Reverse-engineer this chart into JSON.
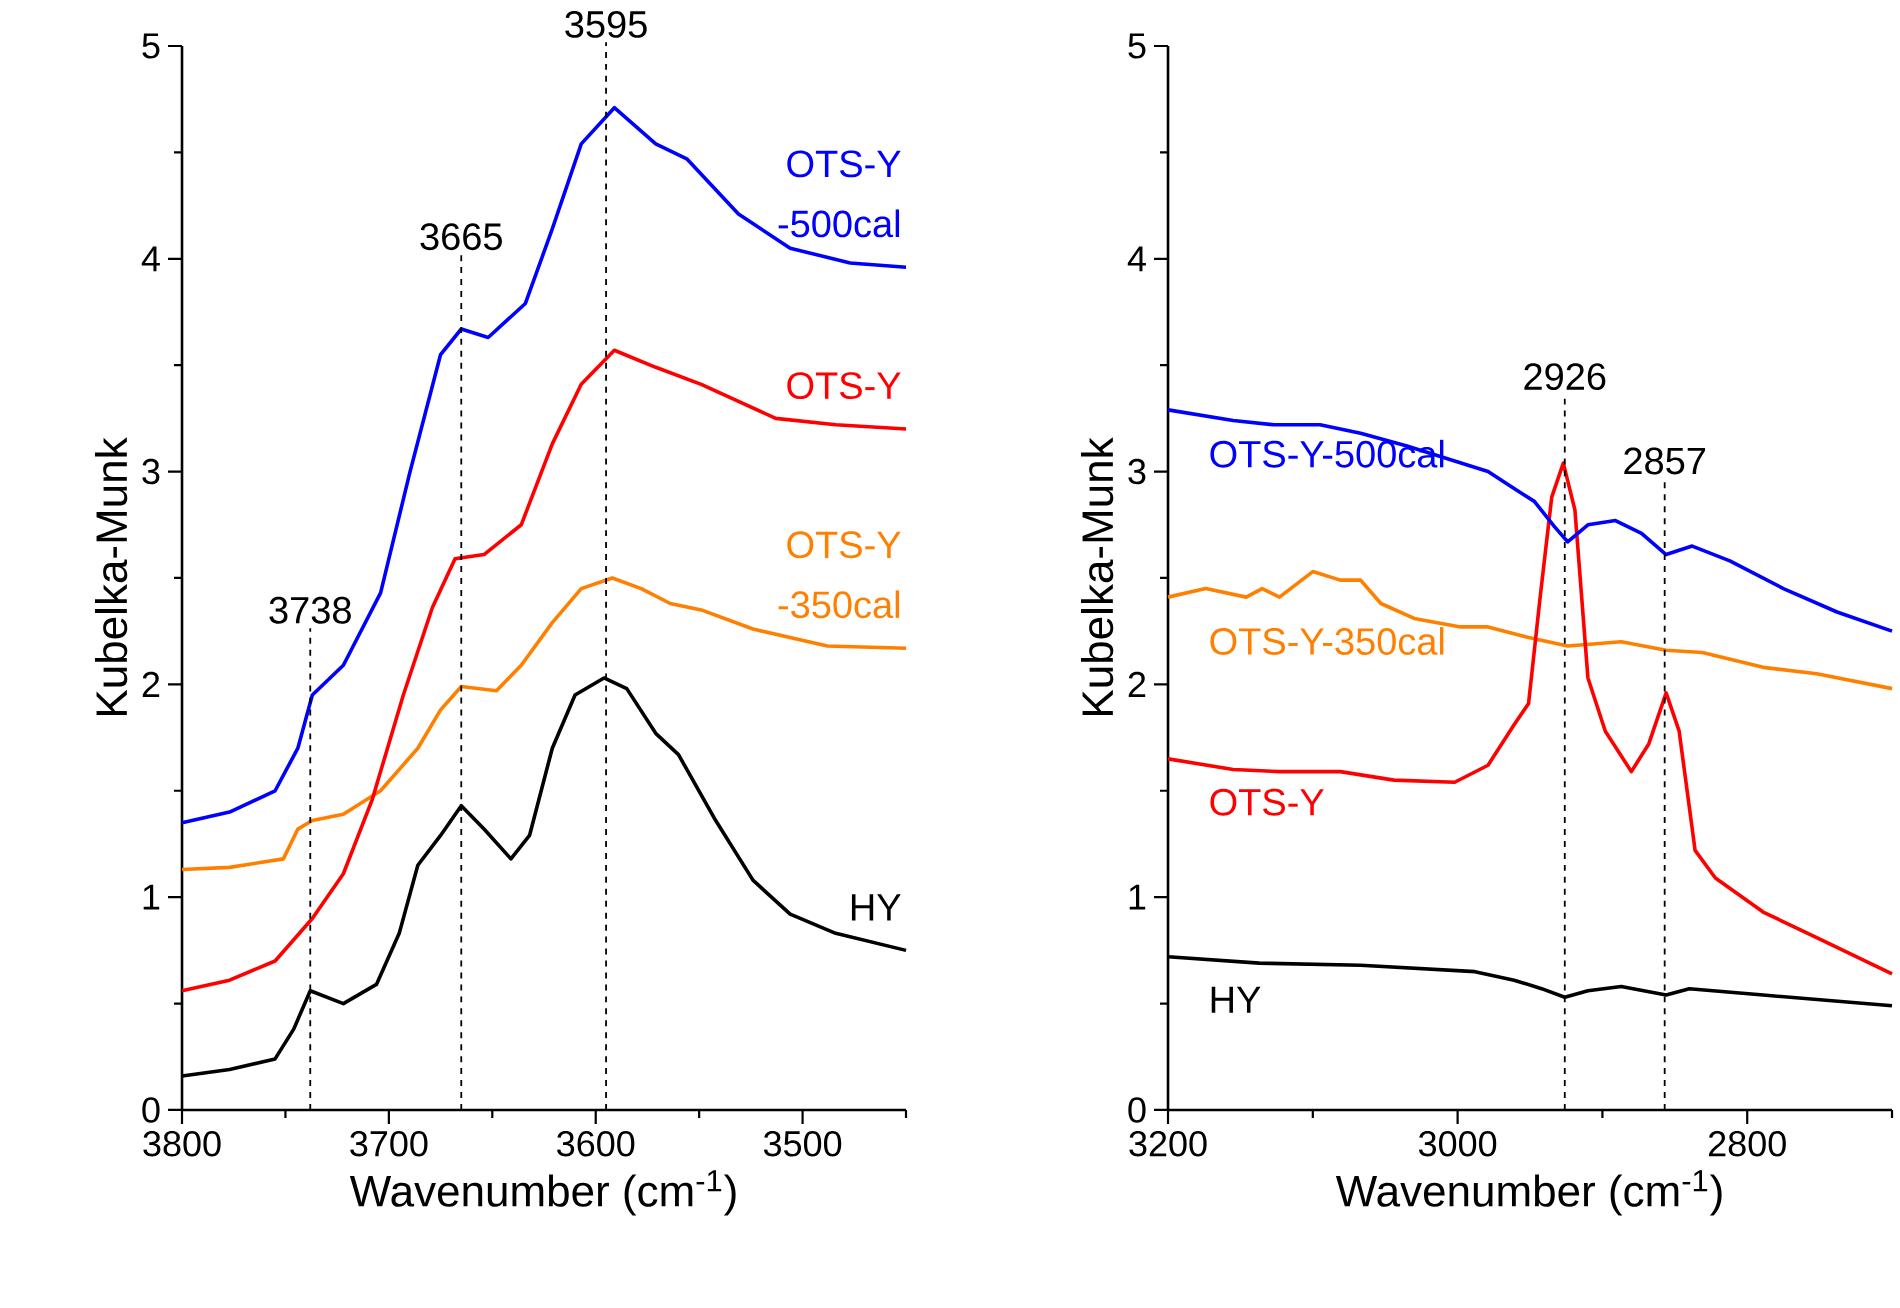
{
  "chart_data": [
    {
      "type": "line",
      "xlabel": "Wavenumber (cm$^{-1}$)",
      "ylabel": "Kubelka-Munk",
      "xlim": [
        3800,
        3450
      ],
      "ylim": [
        0,
        5
      ],
      "xticks": [
        3800,
        {
          "value": 3750,
          "label": null
        },
        3700,
        {
          "value": 3650,
          "label": null
        },
        3600,
        {
          "value": 3550,
          "label": null
        },
        3500,
        {
          "value": 3450,
          "label": null
        }
      ],
      "yticks": [
        0,
        {
          "value": 0.5,
          "label": null
        },
        1,
        {
          "value": 1.5,
          "label": null
        },
        2,
        {
          "value": 2.5,
          "label": null
        },
        3,
        {
          "value": 3.5,
          "label": null
        },
        4,
        {
          "value": 4.5,
          "label": null
        },
        5
      ],
      "marker": "none",
      "line_style": "solid",
      "series": [
        {
          "name": "HY",
          "color": "#000000",
          "x": [
            3800,
            3777,
            3755,
            3746,
            3738,
            3722,
            3706,
            3695,
            3686,
            3675,
            3665,
            3654,
            3641,
            3632,
            3621,
            3610,
            3596,
            3585,
            3571,
            3560,
            3542,
            3524,
            3506,
            3484,
            3450
          ],
          "values": [
            0.16,
            0.19,
            0.24,
            0.38,
            0.56,
            0.5,
            0.59,
            0.83,
            1.15,
            1.29,
            1.43,
            1.32,
            1.18,
            1.29,
            1.7,
            1.95,
            2.03,
            1.98,
            1.77,
            1.67,
            1.36,
            1.08,
            0.92,
            0.83,
            0.75
          ]
        },
        {
          "name": "OTS-Y -350cal",
          "color": "#ff8000",
          "x": [
            3800,
            3777,
            3751,
            3744,
            3737,
            3722,
            3704,
            3686,
            3675,
            3665,
            3648,
            3636,
            3621,
            3607,
            3592,
            3578,
            3564,
            3549,
            3524,
            3488,
            3450
          ],
          "values": [
            1.13,
            1.14,
            1.18,
            1.32,
            1.36,
            1.39,
            1.5,
            1.7,
            1.88,
            1.99,
            1.97,
            2.09,
            2.29,
            2.45,
            2.5,
            2.45,
            2.38,
            2.35,
            2.26,
            2.18,
            2.17
          ]
        },
        {
          "name": "OTS-Y",
          "color": "#ff0000",
          "x": [
            3800,
            3777,
            3755,
            3737,
            3722,
            3708,
            3693,
            3679,
            3668,
            3654,
            3636,
            3621,
            3607,
            3591,
            3571,
            3549,
            3513,
            3484,
            3450
          ],
          "values": [
            0.56,
            0.61,
            0.7,
            0.9,
            1.11,
            1.46,
            1.95,
            2.36,
            2.59,
            2.61,
            2.75,
            3.13,
            3.41,
            3.57,
            3.49,
            3.41,
            3.25,
            3.22,
            3.2
          ]
        },
        {
          "name": "OTS-Y -500cal",
          "color": "#0000ff",
          "x": [
            3800,
            3777,
            3755,
            3744,
            3737,
            3722,
            3704,
            3690,
            3675,
            3665,
            3652,
            3634,
            3621,
            3607,
            3591,
            3571,
            3556,
            3531,
            3506,
            3477,
            3450
          ],
          "values": [
            1.35,
            1.4,
            1.5,
            1.7,
            1.95,
            2.09,
            2.43,
            2.99,
            3.55,
            3.67,
            3.63,
            3.79,
            4.14,
            4.54,
            4.71,
            4.54,
            4.47,
            4.21,
            4.05,
            3.98,
            3.96
          ]
        }
      ],
      "ref_lines": [
        {
          "axis": "x",
          "value": 3738,
          "label": "3738",
          "line_style": "dashed"
        },
        {
          "axis": "x",
          "value": 3665,
          "label": "3665",
          "line_style": "dashed"
        },
        {
          "axis": "x",
          "value": 3595,
          "label": "3595",
          "line_style": "dashed"
        }
      ]
    },
    {
      "type": "line",
      "xlabel": "Wavenumber (cm$^{-1}$)",
      "ylabel": "Kubelka-Munk",
      "xlim": [
        3200,
        2700
      ],
      "ylim": [
        0,
        5
      ],
      "xticks": [
        3200,
        {
          "value": 3100,
          "label": null
        },
        3000,
        {
          "value": 2900,
          "label": null
        },
        2800,
        {
          "value": 2700,
          "label": null
        }
      ],
      "yticks": [
        0,
        {
          "value": 0.5,
          "label": null
        },
        1,
        {
          "value": 1.5,
          "label": null
        },
        2,
        {
          "value": 2.5,
          "label": null
        },
        3,
        {
          "value": 3.5,
          "label": null
        },
        4,
        {
          "value": 4.5,
          "label": null
        },
        5
      ],
      "marker": "none",
      "line_style": "solid",
      "series": [
        {
          "name": "HY",
          "color": "#000000",
          "x": [
            3200,
            3137,
            3067,
            2988,
            2961,
            2942,
            2926,
            2910,
            2887,
            2856,
            2840,
            2789,
            2700
          ],
          "values": [
            0.72,
            0.69,
            0.68,
            0.65,
            0.61,
            0.57,
            0.53,
            0.56,
            0.58,
            0.54,
            0.57,
            0.54,
            0.49
          ]
        },
        {
          "name": "OTS-Y-350cal",
          "color": "#ff8000",
          "x": [
            3200,
            3174,
            3146,
            3135,
            3123,
            3100,
            3081,
            3067,
            3053,
            3030,
            2998,
            2979,
            2951,
            2924,
            2887,
            2856,
            2831,
            2789,
            2752,
            2700
          ],
          "values": [
            2.41,
            2.45,
            2.41,
            2.45,
            2.41,
            2.53,
            2.49,
            2.49,
            2.38,
            2.31,
            2.27,
            2.27,
            2.22,
            2.18,
            2.2,
            2.16,
            2.15,
            2.08,
            2.05,
            1.98
          ]
        },
        {
          "name": "OTS-Y",
          "color": "#ff0000",
          "x": [
            3200,
            3155,
            3123,
            3081,
            3044,
            3002,
            2979,
            2961,
            2951,
            2943,
            2935,
            2927,
            2919,
            2910,
            2898,
            2880,
            2868,
            2856,
            2847,
            2836,
            2822,
            2789,
            2752,
            2700
          ],
          "values": [
            1.65,
            1.6,
            1.59,
            1.59,
            1.55,
            1.54,
            1.62,
            1.81,
            1.91,
            2.41,
            2.88,
            3.04,
            2.82,
            2.03,
            1.78,
            1.59,
            1.72,
            1.96,
            1.78,
            1.22,
            1.09,
            0.93,
            0.81,
            0.64
          ]
        },
        {
          "name": "OTS-Y-500cal",
          "color": "#0000ff",
          "x": [
            3200,
            3155,
            3127,
            3095,
            3067,
            3035,
            3007,
            2979,
            2961,
            2947,
            2933,
            2924,
            2910,
            2891,
            2873,
            2856,
            2838,
            2812,
            2775,
            2738,
            2700
          ],
          "values": [
            3.29,
            3.24,
            3.22,
            3.22,
            3.18,
            3.12,
            3.06,
            3.0,
            2.92,
            2.86,
            2.74,
            2.67,
            2.75,
            2.77,
            2.71,
            2.61,
            2.65,
            2.58,
            2.45,
            2.34,
            2.25
          ]
        }
      ],
      "ref_lines": [
        {
          "axis": "x",
          "value": 2926,
          "label": "2926",
          "line_style": "dashed"
        },
        {
          "axis": "x",
          "value": 2857,
          "label": "2857",
          "line_style": "dashed"
        }
      ]
    }
  ]
}
